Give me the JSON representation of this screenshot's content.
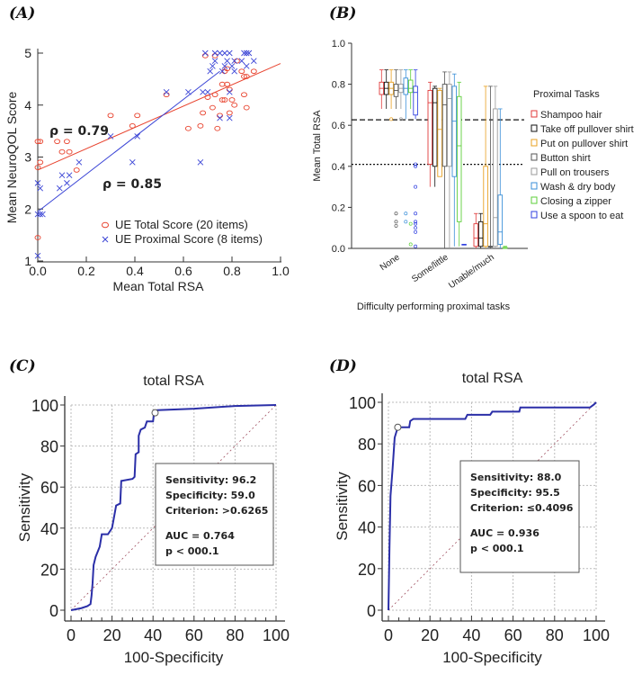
{
  "chart_data": [
    {
      "panel": "(A)",
      "type": "scatter",
      "xlabel": "Mean Total RSA",
      "ylabel": "Mean NeuroQOL Score",
      "xlim": [
        0,
        1.0
      ],
      "ylim": [
        1,
        5
      ],
      "xticks": [
        "0.0",
        "0.2",
        "0.4",
        "0.6",
        "0.8",
        "1.0"
      ],
      "yticks": [
        "1",
        "2",
        "3",
        "4",
        "5"
      ],
      "legend_position": "bottom-right",
      "annotations": [
        "ρ = 0.79",
        "ρ = 0.85"
      ],
      "series": [
        {
          "name": "UE Total Score (20 items)",
          "marker": "circle",
          "color": "#e8432e",
          "fit_line": [
            [
              0,
              2.75
            ],
            [
              1.0,
              4.8
            ]
          ],
          "points": [
            [
              0,
              3.3
            ],
            [
              0.01,
              3.3
            ],
            [
              0,
              2.8
            ],
            [
              0.01,
              2.9
            ],
            [
              0,
              1.45
            ],
            [
              0.08,
              3.3
            ],
            [
              0.1,
              3.1
            ],
            [
              0.12,
              3.3
            ],
            [
              0.13,
              3.1
            ],
            [
              0.16,
              2.75
            ],
            [
              0.3,
              3.8
            ],
            [
              0.39,
              3.6
            ],
            [
              0.41,
              3.8
            ],
            [
              0.53,
              4.2
            ],
            [
              0.62,
              3.55
            ],
            [
              0.67,
              3.6
            ],
            [
              0.68,
              3.85
            ],
            [
              0.69,
              4.95
            ],
            [
              0.7,
              4.15
            ],
            [
              0.72,
              3.95
            ],
            [
              0.73,
              4.2
            ],
            [
              0.74,
              3.55
            ],
            [
              0.75,
              3.8
            ],
            [
              0.76,
              4.1
            ],
            [
              0.76,
              4.4
            ],
            [
              0.77,
              4.1
            ],
            [
              0.78,
              4.4
            ],
            [
              0.78,
              4.7
            ],
            [
              0.79,
              4.3
            ],
            [
              0.79,
              3.85
            ],
            [
              0.8,
              4.1
            ],
            [
              0.81,
              4.0
            ],
            [
              0.82,
              4.85
            ],
            [
              0.84,
              4.65
            ],
            [
              0.85,
              4.55
            ],
            [
              0.85,
              4.2
            ],
            [
              0.86,
              3.95
            ],
            [
              0.86,
              4.55
            ],
            [
              0.89,
              4.65
            ],
            [
              0.73,
              4.95
            ],
            [
              0.77,
              4.65
            ]
          ]
        },
        {
          "name": "UE Proximal Score (8 items)",
          "marker": "x",
          "color": "#3b45d6",
          "fit_line": [
            [
              0,
              1.95
            ],
            [
              0.75,
              4.65
            ]
          ],
          "points": [
            [
              0,
              2.5
            ],
            [
              0.01,
              2.4
            ],
            [
              0,
              1.9
            ],
            [
              0.01,
              1.9
            ],
            [
              0.02,
              1.9
            ],
            [
              0,
              1.1
            ],
            [
              0.09,
              2.4
            ],
            [
              0.1,
              2.65
            ],
            [
              0.12,
              2.5
            ],
            [
              0.13,
              2.65
            ],
            [
              0.17,
              2.9
            ],
            [
              0.3,
              3.4
            ],
            [
              0.39,
              2.9
            ],
            [
              0.41,
              3.4
            ],
            [
              0.53,
              4.25
            ],
            [
              0.62,
              4.25
            ],
            [
              0.67,
              2.9
            ],
            [
              0.68,
              4.25
            ],
            [
              0.69,
              5
            ],
            [
              0.7,
              4.25
            ],
            [
              0.71,
              4.65
            ],
            [
              0.72,
              4.75
            ],
            [
              0.73,
              5
            ],
            [
              0.73,
              4.85
            ],
            [
              0.75,
              5
            ],
            [
              0.75,
              3.75
            ],
            [
              0.76,
              4.65
            ],
            [
              0.77,
              5
            ],
            [
              0.78,
              4.85
            ],
            [
              0.79,
              5
            ],
            [
              0.79,
              4.25
            ],
            [
              0.79,
              3.75
            ],
            [
              0.8,
              4.75
            ],
            [
              0.81,
              4.85
            ],
            [
              0.81,
              4.65
            ],
            [
              0.84,
              4.85
            ],
            [
              0.85,
              5
            ],
            [
              0.86,
              5
            ],
            [
              0.86,
              4.75
            ],
            [
              0.87,
              5
            ],
            [
              0.89,
              4.85
            ],
            [
              0.77,
              4.75
            ]
          ]
        }
      ]
    },
    {
      "panel": "(B)",
      "type": "box",
      "xlabel": "Difficulty performing proximal tasks",
      "ylabel": "Mean Total RSA",
      "ylim": [
        0,
        1.0
      ],
      "yticks": [
        "0.0",
        "0.2",
        "0.4",
        "0.6",
        "0.8",
        "1.0"
      ],
      "categories": [
        "None",
        "Some/little",
        "Unable/much"
      ],
      "reference_lines": [
        {
          "value": 0.6265,
          "style": "dashed"
        },
        {
          "value": 0.4096,
          "style": "dotted"
        }
      ],
      "legend_title": "Proximal Tasks",
      "legend_position": "right",
      "series": [
        {
          "name": "Shampoo hair",
          "color": "#e03a3a",
          "boxes": [
            [
              0.68,
              0.75,
              0.78,
              0.81,
              0.87
            ],
            [
              0.3,
              0.41,
              0.71,
              0.77,
              0.81
            ],
            [
              0,
              0.01,
              0.05,
              0.12,
              0.17
            ]
          ],
          "outliers": []
        },
        {
          "name": "Take off pullover shirt",
          "color": "#111111",
          "boxes": [
            [
              0.68,
              0.75,
              0.78,
              0.81,
              0.87
            ],
            [
              0.3,
              0.4,
              0.71,
              0.78,
              0.79
            ],
            [
              0,
              0.01,
              0.05,
              0.13,
              0.17
            ]
          ],
          "outliers": []
        },
        {
          "name": "Put on pullover shirt",
          "color": "#e8a020",
          "boxes": [
            [
              0.68,
              0.75,
              0.78,
              0.81,
              0.87
            ],
            [
              0.35,
              0.35,
              0.58,
              0.77,
              0.78
            ],
            [
              0,
              0.01,
              0.12,
              0.4,
              0.79
            ]
          ],
          "outliers": [
            [
              0,
              0.63
            ]
          ]
        },
        {
          "name": "Button shirt",
          "color": "#555555",
          "boxes": [
            [
              0.68,
              0.74,
              0.77,
              0.8,
              0.87
            ],
            [
              0,
              0.4,
              0.7,
              0.8,
              0.86
            ],
            [
              0,
              0.01,
              0.01,
              0.01,
              0.79
            ]
          ],
          "outliers": [
            [
              0,
              0.17
            ],
            [
              0,
              0.13
            ],
            [
              0,
              0.11
            ]
          ]
        },
        {
          "name": "Pull on trousers",
          "color": "#9a9a9a",
          "boxes": [
            [
              0.68,
              0.76,
              0.78,
              0.8,
              0.87
            ],
            [
              0,
              0.4,
              0.73,
              0.8,
              0.86
            ],
            [
              0,
              0.01,
              0.15,
              0.68,
              0.79
            ]
          ],
          "outliers": [
            [
              0,
              0.63
            ]
          ]
        },
        {
          "name": "Wash & dry body",
          "color": "#3a8fd8",
          "boxes": [
            [
              0.63,
              0.75,
              0.78,
              0.83,
              0.87
            ],
            [
              0.01,
              0.35,
              0.62,
              0.79,
              0.85
            ],
            [
              0,
              0.02,
              0.08,
              0.26,
              0.68
            ]
          ],
          "outliers": [
            [
              0,
              0.17
            ],
            [
              0,
              0.13
            ]
          ]
        },
        {
          "name": "Closing a zipper",
          "color": "#5ecf3a",
          "boxes": [
            [
              0.68,
              0.76,
              0.78,
              0.82,
              0.87
            ],
            [
              0.01,
              0.13,
              0.5,
              0.74,
              0.81
            ],
            [
              0,
              0,
              0,
              0.005,
              0.01
            ]
          ],
          "outliers": [
            [
              0,
              0.12
            ],
            [
              0,
              0.02
            ]
          ]
        },
        {
          "name": "Use a spoon to eat",
          "color": "#3040e0",
          "boxes": [
            [
              0.63,
              0.65,
              0.76,
              0.79,
              0.87
            ],
            [
              0.02,
              0.02,
              0.02,
              0.02,
              0.02
            ],
            null
          ],
          "outliers": [
            [
              0,
              0.41
            ],
            [
              0,
              0.4
            ],
            [
              0,
              0.3
            ],
            [
              0,
              0.17
            ],
            [
              0,
              0.13
            ],
            [
              0,
              0.12
            ],
            [
              0,
              0.1
            ],
            [
              0,
              0.08
            ],
            [
              0,
              0.01
            ]
          ]
        }
      ]
    },
    {
      "panel": "(C)",
      "type": "line",
      "title": "total RSA",
      "xlabel": "100-Specificity",
      "ylabel": "Sensitivity",
      "xlim": [
        0,
        100
      ],
      "ylim": [
        0,
        100
      ],
      "xticks": [
        "0",
        "20",
        "40",
        "60",
        "80",
        "100"
      ],
      "yticks": [
        "0",
        "20",
        "40",
        "60",
        "80",
        "100"
      ],
      "grid": true,
      "color": "#2b2fa8",
      "curve": [
        [
          0,
          0
        ],
        [
          5,
          1
        ],
        [
          8,
          2
        ],
        [
          9.5,
          3
        ],
        [
          10,
          7
        ],
        [
          10.5,
          13
        ],
        [
          11,
          22
        ],
        [
          12,
          26
        ],
        [
          14,
          31
        ],
        [
          15,
          37
        ],
        [
          18,
          37
        ],
        [
          20,
          40
        ],
        [
          22,
          51
        ],
        [
          24,
          52
        ],
        [
          24.5,
          63
        ],
        [
          30,
          64
        ],
        [
          31,
          65
        ],
        [
          31.5,
          76
        ],
        [
          33,
          77
        ],
        [
          33,
          85
        ],
        [
          34,
          88
        ],
        [
          36,
          89
        ],
        [
          37,
          92
        ],
        [
          40,
          92
        ],
        [
          40.5,
          96.2
        ],
        [
          42,
          97.5
        ],
        [
          60,
          98.2
        ],
        [
          80,
          99.5
        ],
        [
          100,
          100
        ]
      ],
      "criterion_point": [
        41.0,
        96.2
      ],
      "stats_box": [
        "Sensitivity: 96.2",
        "Specificity: 59.0",
        "Criterion: >0.6265",
        "AUC = 0.764",
        "p < 000.1"
      ]
    },
    {
      "panel": "(D)",
      "type": "line",
      "title": "total RSA",
      "xlabel": "100-Specificity",
      "ylabel": "Sensitivity",
      "xlim": [
        0,
        100
      ],
      "ylim": [
        0,
        100
      ],
      "xticks": [
        "0",
        "20",
        "40",
        "60",
        "80",
        "100"
      ],
      "yticks": [
        "0",
        "20",
        "40",
        "60",
        "80",
        "100"
      ],
      "grid": true,
      "color": "#2b2fa8",
      "curve": [
        [
          0,
          0
        ],
        [
          0.5,
          30
        ],
        [
          1,
          55
        ],
        [
          2,
          68
        ],
        [
          3,
          83
        ],
        [
          4.5,
          88
        ],
        [
          10,
          88
        ],
        [
          10.5,
          91
        ],
        [
          12,
          92
        ],
        [
          37,
          92
        ],
        [
          38,
          94
        ],
        [
          49,
          94
        ],
        [
          50,
          95.5
        ],
        [
          63,
          95.5
        ],
        [
          63.5,
          97.5
        ],
        [
          97,
          97.5
        ],
        [
          99,
          99
        ],
        [
          100,
          100
        ]
      ],
      "criterion_point": [
        4.5,
        88.0
      ],
      "stats_box": [
        "Sensitivity: 88.0",
        "Specificity: 95.5",
        "Criterion: ≤0.4096",
        "AUC = 0.936",
        "p < 000.1"
      ]
    }
  ]
}
